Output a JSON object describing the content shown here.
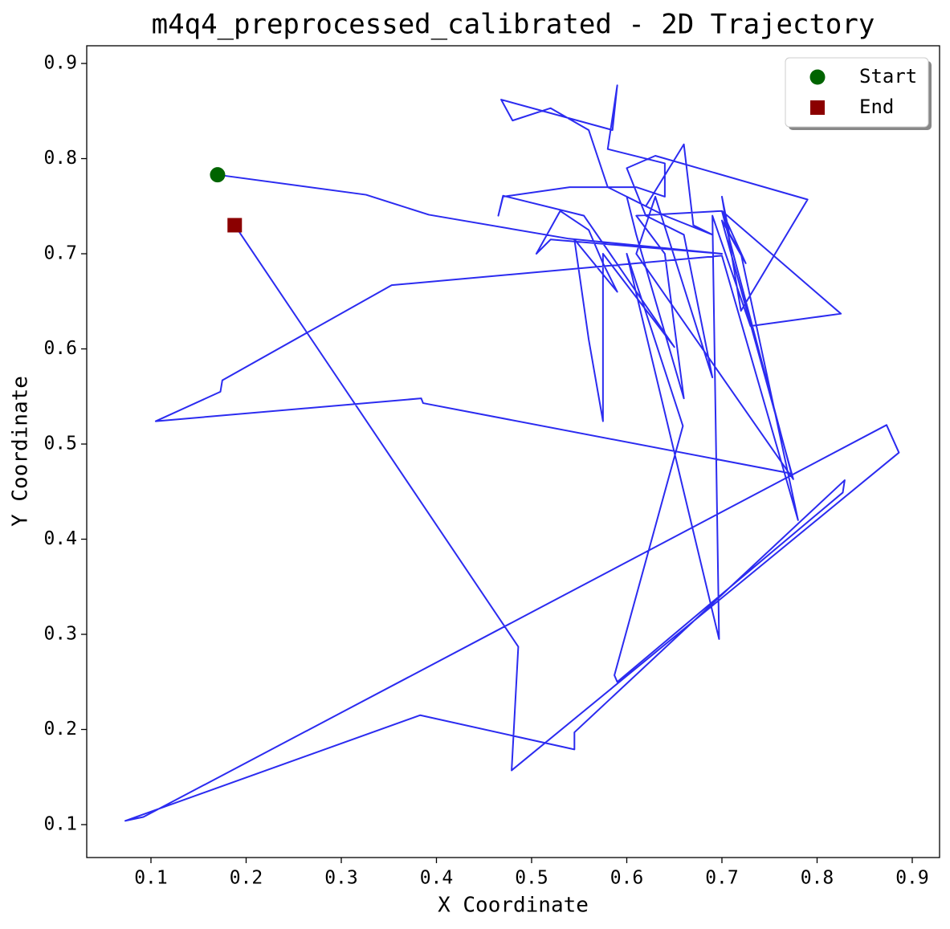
{
  "chart_data": {
    "type": "line",
    "title": "m4q4_preprocessed_calibrated - 2D Trajectory",
    "x_label": "X Coordinate",
    "y_label": "Y Coordinate",
    "xlim": [
      0.0325,
      0.9287
    ],
    "ylim": [
      0.0654,
      0.9186
    ],
    "xticks": [
      0.1,
      0.2,
      0.3,
      0.4,
      0.5,
      0.6,
      0.7,
      0.8,
      0.9
    ],
    "yticks": [
      0.1,
      0.2,
      0.3,
      0.4,
      0.5,
      0.6,
      0.7,
      0.8,
      0.9
    ],
    "grid": false,
    "legend": "upper right",
    "x": [
      0.17,
      0.326,
      0.392,
      0.538,
      0.7,
      0.52,
      0.505,
      0.53,
      0.56,
      0.575,
      0.59,
      0.545,
      0.56,
      0.575,
      0.575,
      0.65,
      0.555,
      0.47,
      0.465,
      0.47,
      0.54,
      0.61,
      0.64,
      0.64,
      0.58,
      0.59,
      0.585,
      0.468,
      0.48,
      0.52,
      0.56,
      0.58,
      0.62,
      0.66,
      0.67,
      0.69,
      0.64,
      0.6,
      0.61,
      0.66,
      0.64,
      0.61,
      0.7,
      0.725,
      0.708,
      0.7,
      0.72,
      0.79,
      0.63,
      0.6,
      0.62,
      0.66,
      0.69,
      0.63,
      0.61,
      0.775,
      0.7,
      0.72,
      0.78,
      0.7,
      0.353,
      0.175,
      0.173,
      0.105,
      0.384,
      0.386,
      0.773,
      0.7,
      0.825,
      0.73,
      0.69,
      0.697,
      0.6,
      0.659,
      0.587,
      0.59,
      0.827,
      0.829,
      0.545,
      0.545,
      0.383,
      0.073,
      0.092,
      0.873,
      0.886,
      0.479,
      0.486,
      0.188
    ],
    "series": [
      {
        "color": "#2b2bf0",
        "values": [
          0.783,
          0.762,
          0.741,
          0.716,
          0.7,
          0.715,
          0.7,
          0.745,
          0.725,
          0.69,
          0.66,
          0.715,
          0.61,
          0.524,
          0.7,
          0.602,
          0.74,
          0.761,
          0.74,
          0.76,
          0.77,
          0.77,
          0.76,
          0.795,
          0.81,
          0.877,
          0.83,
          0.862,
          0.84,
          0.853,
          0.83,
          0.77,
          0.75,
          0.815,
          0.73,
          0.72,
          0.74,
          0.76,
          0.72,
          0.548,
          0.7,
          0.74,
          0.745,
          0.69,
          0.72,
          0.76,
          0.64,
          0.757,
          0.803,
          0.79,
          0.74,
          0.72,
          0.57,
          0.76,
          0.7,
          0.463,
          0.735,
          0.7,
          0.42,
          0.698,
          0.667,
          0.567,
          0.555,
          0.524,
          0.548,
          0.543,
          0.469,
          0.745,
          0.637,
          0.624,
          0.74,
          0.295,
          0.7,
          0.519,
          0.257,
          0.25,
          0.449,
          0.462,
          0.197,
          0.179,
          0.215,
          0.104,
          0.108,
          0.52,
          0.491,
          0.157,
          0.287,
          0.73
        ]
      }
    ],
    "markers": [
      {
        "name": "Start",
        "color": "#006400",
        "shape": "circle",
        "x": 0.17,
        "y": 0.783
      },
      {
        "name": "End",
        "color": "#8b0000",
        "shape": "square",
        "x": 0.188,
        "y": 0.73
      }
    ]
  }
}
